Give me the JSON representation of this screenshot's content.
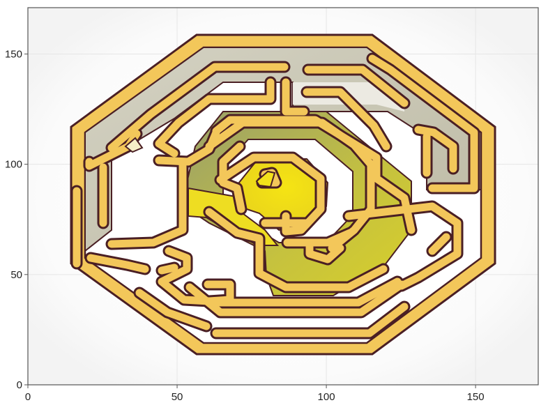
{
  "plot": {
    "x_ticks": [
      "0",
      "50",
      "100",
      "150"
    ],
    "y_ticks": [
      "0",
      "50",
      "100",
      "150"
    ],
    "x_range": [
      0,
      171
    ],
    "y_range": [
      0,
      171
    ],
    "grid": true,
    "frame_color": "#555555",
    "grid_color": "#e6e6e6"
  },
  "maze": {
    "wall_fill": "#f3c75a",
    "wall_outline": "#4a1f24",
    "gray_zone": "#c9c5b2",
    "olive_zone": "#bcb74a",
    "yellow_center": "#f3e21a",
    "white_paths": "#ffffff",
    "marker_outer": "#f6efc7",
    "marker_center": "#f3e21a"
  }
}
